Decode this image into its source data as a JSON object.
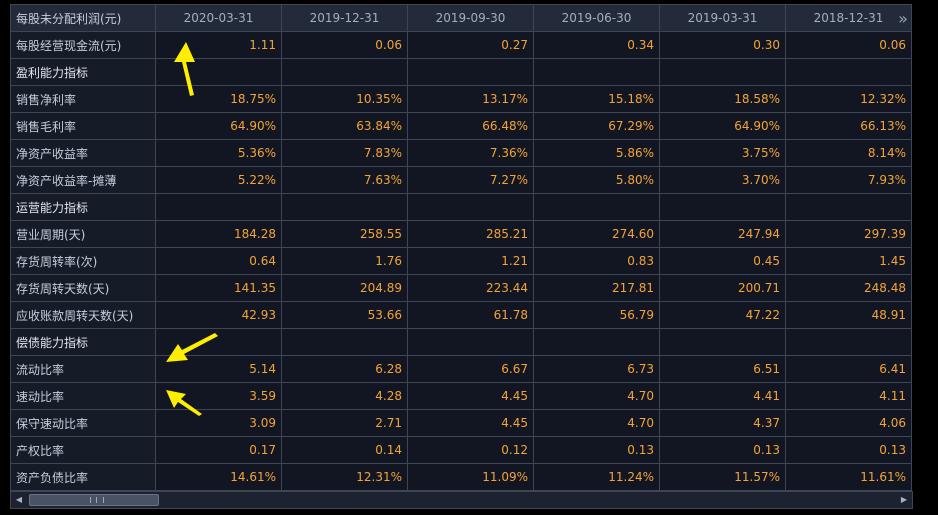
{
  "colors": {
    "value": "#f4a437",
    "label": "#c7cedb",
    "header": "#a3aec0",
    "annotation_arrow": "#ffee00"
  },
  "header": {
    "corner": "每股未分配利润(元)",
    "dates": [
      "2020-03-31",
      "2019-12-31",
      "2019-09-30",
      "2019-06-30",
      "2019-03-31",
      "2018-12-31"
    ],
    "more_icon": "double-chevron-right-icon"
  },
  "rows": [
    {
      "label": "每股经营现金流(元)",
      "values": [
        "1.11",
        "0.06",
        "0.27",
        "0.34",
        "0.30",
        "0.06"
      ]
    },
    {
      "label": "盈利能力指标",
      "section": true
    },
    {
      "label": "销售净利率",
      "values": [
        "18.75%",
        "10.35%",
        "13.17%",
        "15.18%",
        "18.58%",
        "12.32%"
      ]
    },
    {
      "label": "销售毛利率",
      "values": [
        "64.90%",
        "63.84%",
        "66.48%",
        "67.29%",
        "64.90%",
        "66.13%"
      ]
    },
    {
      "label": "净资产收益率",
      "values": [
        "5.36%",
        "7.83%",
        "7.36%",
        "5.86%",
        "3.75%",
        "8.14%"
      ]
    },
    {
      "label": "净资产收益率-摊薄",
      "values": [
        "5.22%",
        "7.63%",
        "7.27%",
        "5.80%",
        "3.70%",
        "7.93%"
      ]
    },
    {
      "label": "运营能力指标",
      "section": true
    },
    {
      "label": "营业周期(天)",
      "values": [
        "184.28",
        "258.55",
        "285.21",
        "274.60",
        "247.94",
        "297.39"
      ]
    },
    {
      "label": "存货周转率(次)",
      "values": [
        "0.64",
        "1.76",
        "1.21",
        "0.83",
        "0.45",
        "1.45"
      ]
    },
    {
      "label": "存货周转天数(天)",
      "values": [
        "141.35",
        "204.89",
        "223.44",
        "217.81",
        "200.71",
        "248.48"
      ]
    },
    {
      "label": "应收账款周转天数(天)",
      "values": [
        "42.93",
        "53.66",
        "61.78",
        "56.79",
        "47.22",
        "48.91"
      ]
    },
    {
      "label": "偿债能力指标",
      "section": true
    },
    {
      "label": "流动比率",
      "values": [
        "5.14",
        "6.28",
        "6.67",
        "6.73",
        "6.51",
        "6.41"
      ]
    },
    {
      "label": "速动比率",
      "values": [
        "3.59",
        "4.28",
        "4.45",
        "4.70",
        "4.41",
        "4.11"
      ]
    },
    {
      "label": "保守速动比率",
      "values": [
        "3.09",
        "2.71",
        "4.45",
        "4.70",
        "4.37",
        "4.06"
      ]
    },
    {
      "label": "产权比率",
      "values": [
        "0.17",
        "0.14",
        "0.12",
        "0.13",
        "0.13",
        "0.13"
      ]
    },
    {
      "label": "资产负债比率",
      "values": [
        "14.61%",
        "12.31%",
        "11.09%",
        "11.24%",
        "11.57%",
        "11.61%"
      ]
    }
  ],
  "scrollbar": {
    "left_icon": "scroll-left-icon",
    "right_icon": "scroll-right-icon"
  }
}
